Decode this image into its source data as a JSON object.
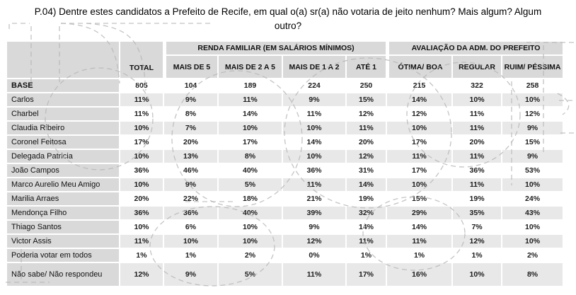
{
  "title": "P.04) Dentre estes candidatos a Prefeito de Recife, em qual o(a) sr(a) não votaria de jeito nenhum? Mais algum? Algum outro?",
  "table": {
    "corner_label": "",
    "total_header": "TOTAL",
    "groups": [
      {
        "label": "RENDA FAMILIAR (EM SALÁRIOS MÍNIMOS)",
        "columns": [
          "MAIS DE 5",
          "MAIS DE 2 A 5",
          "MAIS DE 1 A 2",
          "ATÉ 1"
        ]
      },
      {
        "label": "AVALIAÇÃO DA ADM. DO PREFEITO",
        "columns": [
          "ÓTIMA/ BOA",
          "REGULAR",
          "RUIM/ PÉSSIMA"
        ]
      }
    ],
    "rows": [
      {
        "label": "BASE",
        "values": [
          "805",
          "104",
          "189",
          "224",
          "250",
          "215",
          "322",
          "258"
        ]
      },
      {
        "label": "Carlos",
        "values": [
          "11%",
          "9%",
          "11%",
          "9%",
          "15%",
          "14%",
          "10%",
          "10%"
        ]
      },
      {
        "label": "Charbel",
        "values": [
          "11%",
          "8%",
          "14%",
          "11%",
          "12%",
          "12%",
          "11%",
          "12%"
        ]
      },
      {
        "label": "Claudia Ribeiro",
        "values": [
          "10%",
          "7%",
          "10%",
          "10%",
          "11%",
          "10%",
          "11%",
          "9%"
        ]
      },
      {
        "label": "Coronel Feitosa",
        "values": [
          "17%",
          "20%",
          "17%",
          "14%",
          "20%",
          "17%",
          "20%",
          "15%"
        ]
      },
      {
        "label": "Delegada Patricia",
        "values": [
          "10%",
          "13%",
          "8%",
          "10%",
          "12%",
          "11%",
          "11%",
          "9%"
        ]
      },
      {
        "label": "João Campos",
        "values": [
          "36%",
          "46%",
          "40%",
          "36%",
          "31%",
          "17%",
          "36%",
          "53%"
        ]
      },
      {
        "label": "Marco Aurelio Meu Amigo",
        "values": [
          "10%",
          "9%",
          "5%",
          "11%",
          "14%",
          "10%",
          "11%",
          "10%"
        ]
      },
      {
        "label": "Marilia Arraes",
        "values": [
          "20%",
          "22%",
          "18%",
          "21%",
          "19%",
          "15%",
          "19%",
          "24%"
        ]
      },
      {
        "label": "Mendonça Filho",
        "values": [
          "36%",
          "36%",
          "40%",
          "39%",
          "32%",
          "29%",
          "35%",
          "43%"
        ]
      },
      {
        "label": "Thiago Santos",
        "values": [
          "10%",
          "6%",
          "10%",
          "9%",
          "14%",
          "14%",
          "7%",
          "10%"
        ]
      },
      {
        "label": "Victor Assis",
        "values": [
          "11%",
          "10%",
          "10%",
          "12%",
          "11%",
          "11%",
          "12%",
          "10%"
        ]
      },
      {
        "label": "Poderia votar em todos",
        "values": [
          "1%",
          "1%",
          "2%",
          "0%",
          "1%",
          "1%",
          "1%",
          "2%"
        ]
      },
      {
        "label": "Não sabe/ Não respondeu",
        "values": [
          "12%",
          "9%",
          "5%",
          "11%",
          "17%",
          "16%",
          "10%",
          "8%"
        ]
      }
    ]
  },
  "colors": {
    "header_bg": "#d9d9d9",
    "row_label_bg": "#d9d9d9",
    "row_alt_bg": "#e9e8e8",
    "row_bg": "#ffffff",
    "text": "#000000",
    "dashed_overlay": "#b5b5b5"
  }
}
